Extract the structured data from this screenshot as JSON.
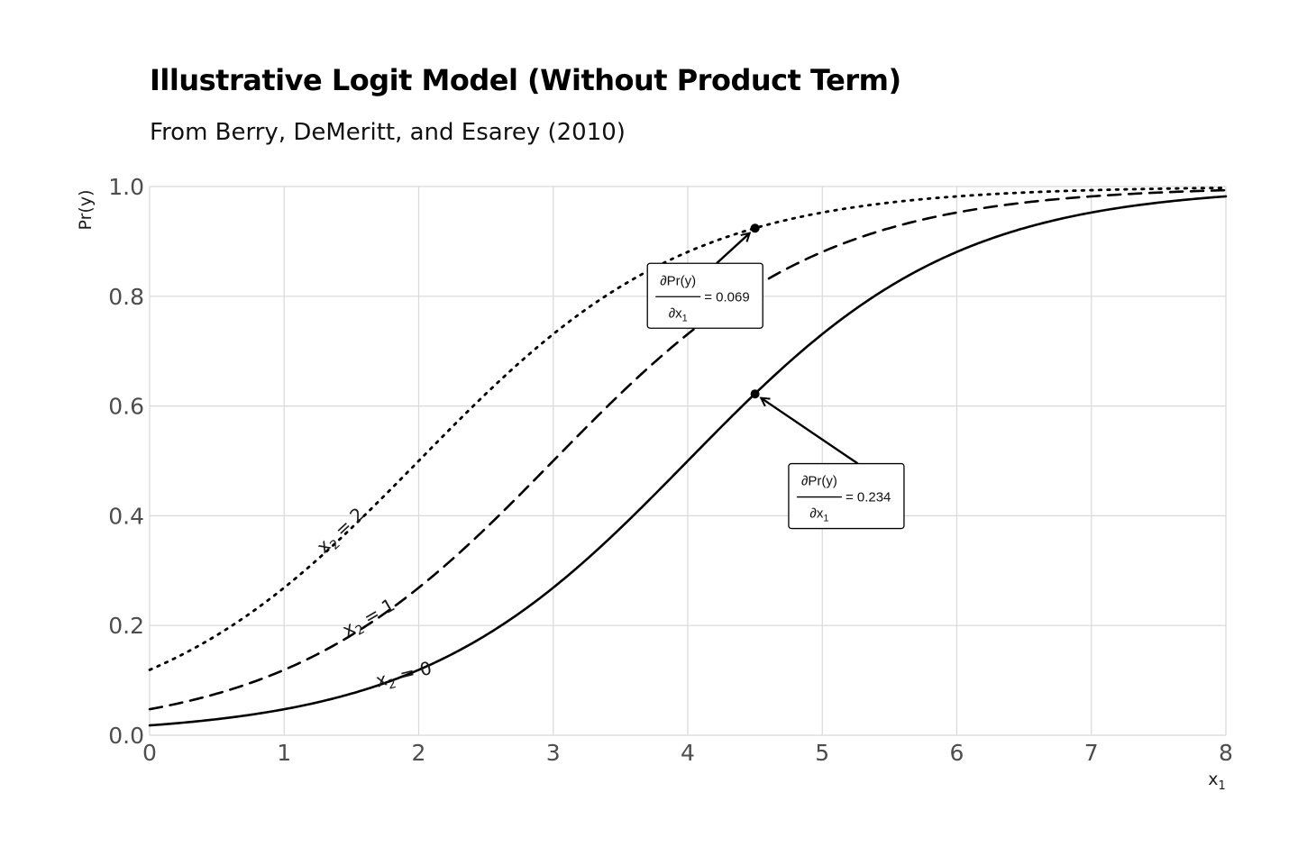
{
  "chart_data": {
    "type": "line",
    "title": "Illustrative Logit Model (Without Product Term)",
    "subtitle": "From Berry, DeMeritt, and Esarey (2010)",
    "xlabel": "x",
    "xlabel_sub": "1",
    "ylabel": "Pr(y)",
    "xlim": [
      0,
      8
    ],
    "ylim": [
      0,
      1
    ],
    "x_ticks": [
      0,
      1,
      2,
      3,
      4,
      5,
      6,
      7,
      8
    ],
    "x_tick_labels": [
      "0",
      "1",
      "2",
      "3",
      "4",
      "5",
      "6",
      "7",
      "8"
    ],
    "y_ticks": [
      0,
      0.2,
      0.4,
      0.6,
      0.8,
      1.0
    ],
    "y_tick_labels": [
      "0.0",
      "0.2",
      "0.4",
      "0.6",
      "0.8",
      "1.0"
    ],
    "grid": true,
    "model": {
      "intercept": -4,
      "beta_x1": 1,
      "beta_x2": 1
    },
    "series": [
      {
        "name": "x2 = 0",
        "x2": 0,
        "style": "solid",
        "label_text": "x",
        "label_sub": "2",
        "label_rest": " = 0",
        "label_x": 1.9,
        "label_y": 0.1,
        "label_angle": -14
      },
      {
        "name": "x2 = 1",
        "x2": 1,
        "style": "dashed",
        "label_text": "x",
        "label_sub": "2",
        "label_rest": " = 1",
        "label_x": 1.65,
        "label_y": 0.205,
        "label_angle": -30
      },
      {
        "name": "x2 = 2",
        "x2": 2,
        "style": "dotted",
        "label_text": "x",
        "label_sub": "2",
        "label_rest": " = 2",
        "label_x": 1.45,
        "label_y": 0.365,
        "label_angle": -43
      }
    ],
    "annotations": [
      {
        "point": [
          4.5,
          0.924
        ],
        "numerator": "∂Pr(y)",
        "denominator": "∂x",
        "denominator_sub": "1",
        "value": "= 0.069",
        "box_x": 3.7,
        "box_y": 0.86
      },
      {
        "point": [
          4.5,
          0.622
        ],
        "numerator": "∂Pr(y)",
        "denominator": "∂x",
        "denominator_sub": "1",
        "value": "= 0.234",
        "box_x": 4.75,
        "box_y": 0.495
      }
    ]
  }
}
